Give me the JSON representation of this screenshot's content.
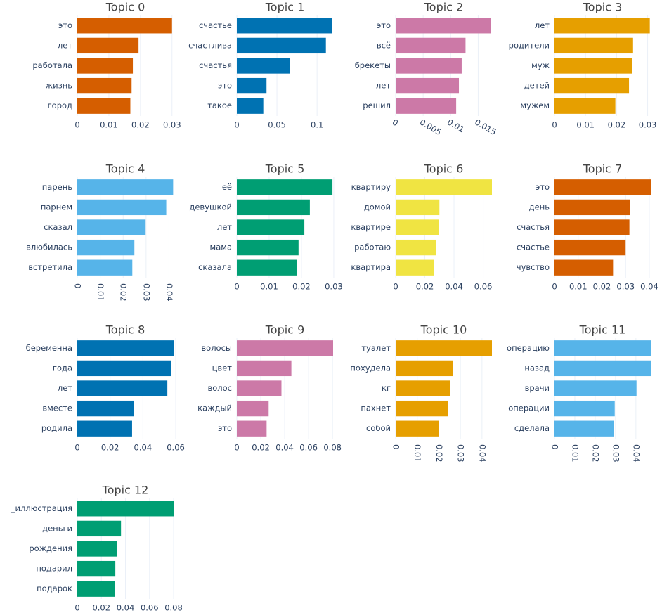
{
  "chart_data": [
    {
      "type": "bar",
      "orientation": "horizontal",
      "title": "Topic 0",
      "color": "#D55E00",
      "grid": true,
      "categories": [
        "это",
        "лет",
        "работала",
        "жизнь",
        "город"
      ],
      "values": [
        0.03,
        0.0194,
        0.0176,
        0.0172,
        0.0168
      ],
      "xlim": [
        0,
        0.0305
      ],
      "xticks": [
        0,
        0.01,
        0.02,
        0.03
      ]
    },
    {
      "type": "bar",
      "orientation": "horizontal",
      "title": "Topic 1",
      "color": "#0072B2",
      "grid": true,
      "categories": [
        "счастье",
        "счастлива",
        "счастья",
        "это",
        "такое"
      ],
      "values": [
        0.119,
        0.111,
        0.066,
        0.037,
        0.033
      ],
      "xlim": [
        0,
        0.12
      ],
      "xticks": [
        0,
        0.05,
        0.1
      ]
    },
    {
      "type": "bar",
      "orientation": "horizontal",
      "title": "Topic 2",
      "color": "#CC79A7",
      "grid": true,
      "categories": [
        "это",
        "всё",
        "брекеты",
        "лет",
        "решил"
      ],
      "values": [
        0.0173,
        0.0127,
        0.012,
        0.0115,
        0.011
      ],
      "xlim": [
        0,
        0.0175
      ],
      "xticks": [
        0,
        0.005,
        0.01,
        0.015
      ]
    },
    {
      "type": "bar",
      "orientation": "horizontal",
      "title": "Topic 3",
      "color": "#E69F00",
      "grid": true,
      "categories": [
        "лет",
        "родители",
        "муж",
        "детей",
        "мужем"
      ],
      "values": [
        0.0307,
        0.0253,
        0.025,
        0.024,
        0.0196
      ],
      "xlim": [
        0,
        0.031
      ],
      "xticks": [
        0,
        0.01,
        0.02,
        0.03
      ]
    },
    {
      "type": "bar",
      "orientation": "horizontal",
      "title": "Topic 4",
      "color": "#56B4E9",
      "grid": true,
      "categories": [
        "парень",
        "парнем",
        "сказал",
        "влюбилась",
        "встретила"
      ],
      "values": [
        0.0418,
        0.0388,
        0.0298,
        0.0249,
        0.024
      ],
      "xlim": [
        0,
        0.042
      ],
      "xticks": [
        0,
        0.01,
        0.02,
        0.03,
        0.04
      ]
    },
    {
      "type": "bar",
      "orientation": "horizontal",
      "title": "Topic 5",
      "color": "#009E73",
      "grid": true,
      "categories": [
        "её",
        "девушкой",
        "лет",
        "мама",
        "сказала"
      ],
      "values": [
        0.0296,
        0.0226,
        0.0209,
        0.0191,
        0.0185
      ],
      "xlim": [
        0,
        0.0298
      ],
      "xticks": [
        0,
        0.01,
        0.02,
        0.03
      ]
    },
    {
      "type": "bar",
      "orientation": "horizontal",
      "title": "Topic 6",
      "color": "#F0E442",
      "grid": true,
      "categories": [
        "квартиру",
        "домой",
        "квартире",
        "работаю",
        "квартира"
      ],
      "values": [
        0.066,
        0.03,
        0.0298,
        0.0278,
        0.0263
      ],
      "xlim": [
        0,
        0.066
      ],
      "xticks": [
        0,
        0.02,
        0.04,
        0.06
      ]
    },
    {
      "type": "bar",
      "orientation": "horizontal",
      "title": "Topic 7",
      "color": "#D55E00",
      "grid": true,
      "categories": [
        "это",
        "день",
        "счастья",
        "счастье",
        "чувство"
      ],
      "values": [
        0.0406,
        0.0319,
        0.0316,
        0.03,
        0.0247
      ],
      "xlim": [
        0,
        0.0406
      ],
      "xticks": [
        0,
        0.01,
        0.02,
        0.03,
        0.04
      ]
    },
    {
      "type": "bar",
      "orientation": "horizontal",
      "title": "Topic 8",
      "color": "#0072B2",
      "grid": true,
      "categories": [
        "беременна",
        "года",
        "лет",
        "вместе",
        "родила"
      ],
      "values": [
        0.0587,
        0.0574,
        0.0549,
        0.0343,
        0.0334
      ],
      "xlim": [
        0,
        0.0587
      ],
      "xticks": [
        0,
        0.02,
        0.04,
        0.06
      ]
    },
    {
      "type": "bar",
      "orientation": "horizontal",
      "title": "Topic 9",
      "color": "#CC79A7",
      "grid": true,
      "categories": [
        "волосы",
        "цвет",
        "волос",
        "каждый",
        "это"
      ],
      "values": [
        0.0805,
        0.0456,
        0.0373,
        0.0266,
        0.0249
      ],
      "xlim": [
        0,
        0.0805
      ],
      "xticks": [
        0,
        0.02,
        0.04,
        0.06,
        0.08
      ]
    },
    {
      "type": "bar",
      "orientation": "horizontal",
      "title": "Topic 10",
      "color": "#E69F00",
      "grid": true,
      "categories": [
        "туалет",
        "похудела",
        "кг",
        "пахнет",
        "собой"
      ],
      "values": [
        0.0446,
        0.0266,
        0.0252,
        0.0243,
        0.02
      ],
      "xlim": [
        0,
        0.0446
      ],
      "xticks": [
        0,
        0.01,
        0.02,
        0.03,
        0.04
      ]
    },
    {
      "type": "bar",
      "orientation": "horizontal",
      "title": "Topic 11",
      "color": "#56B4E9",
      "grid": true,
      "categories": [
        "операцию",
        "назад",
        "врачи",
        "операции",
        "сделала"
      ],
      "values": [
        0.0473,
        0.0473,
        0.0403,
        0.0296,
        0.0292
      ],
      "xlim": [
        0,
        0.0473
      ],
      "xticks": [
        0,
        0.01,
        0.02,
        0.03,
        0.04
      ]
    },
    {
      "type": "bar",
      "orientation": "horizontal",
      "title": "Topic 12",
      "color": "#009E73",
      "grid": true,
      "categories": [
        "_иллюстрация",
        "деньги",
        "рождения",
        "подарил",
        "подарок"
      ],
      "values": [
        0.08,
        0.0363,
        0.0327,
        0.0316,
        0.031
      ],
      "xlim": [
        0,
        0.08
      ],
      "xticks": [
        0,
        0.02,
        0.04,
        0.06,
        0.08
      ]
    }
  ]
}
